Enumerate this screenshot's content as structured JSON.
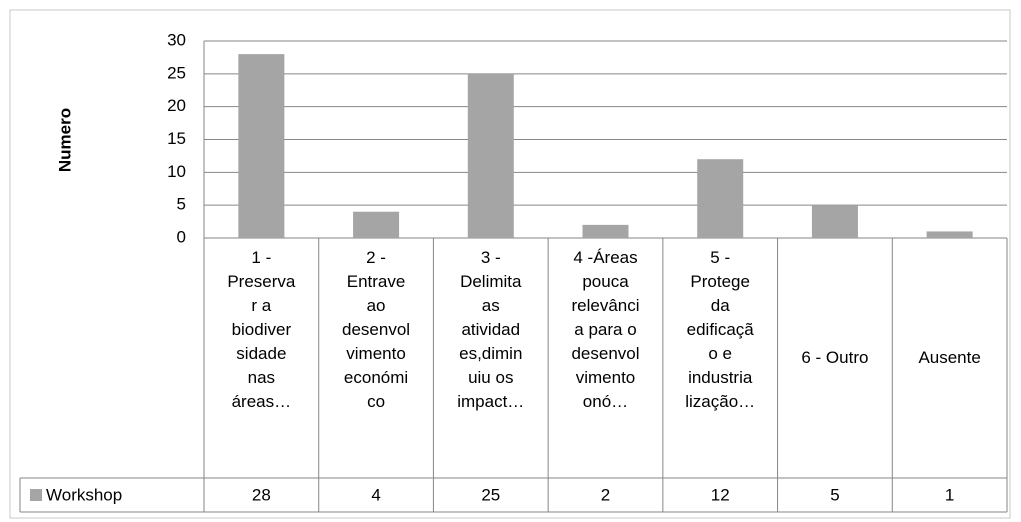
{
  "chart_data": {
    "type": "bar",
    "y_label": "Numero",
    "categories": [
      "1 -\nPreserva\nr a\nbiodiver\nsidade\nnas\náreas…",
      "2 -\nEntrave\nao\ndesenvol\nvimento\neconómi\nco",
      "3 -\nDelimita\nas\natividad\nes,dimin\nuiu os\nimpact…",
      "4 -Áreas\npouca\nrelevânci\na para o\ndesenvol\nvimento\nonó…",
      "5 -\nProtege\nda\nedificaçã\no e\nindustria\nlização…",
      "6 - Outro",
      "Ausente"
    ],
    "series": [
      {
        "name": "Workshop",
        "color": "#a5a5a5",
        "values": [
          28,
          4,
          25,
          2,
          12,
          5,
          1
        ]
      }
    ],
    "ylim": [
      0,
      30
    ],
    "yticks": [
      0,
      5,
      10,
      15,
      20,
      25,
      30
    ],
    "grid": true
  }
}
